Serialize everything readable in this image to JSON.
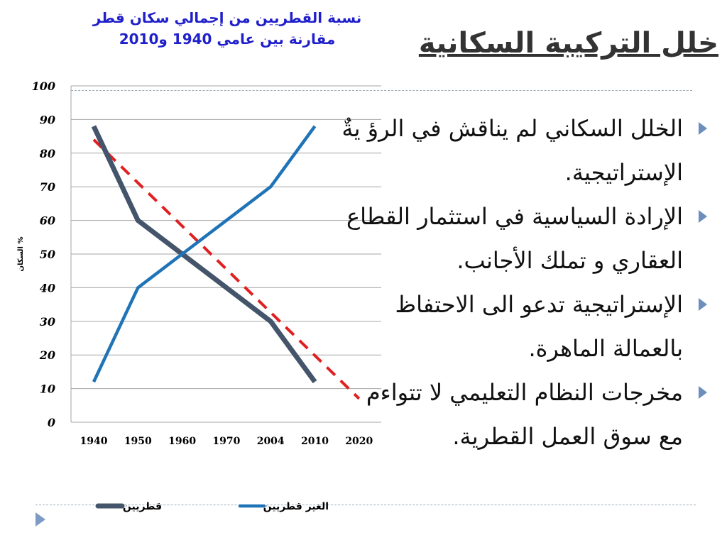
{
  "slide": {
    "title": "خلل التركيبة السكانية",
    "bullets": [
      "الخلل السكاني لم يناقش في الرؤ يةٌ الإستراتيجية.",
      "الإرادة السياسية في استثمار القطاع العقاري و تملك الأجانب.",
      "الإستراتيجية تدعو الى الاحتفاظ بالعمالة الماهرة.",
      "مخرجات النظام التعليمي لا تتواءم مع سوق العمل القطرية."
    ]
  },
  "chart_data": {
    "type": "line",
    "title_line1": "نسبة القطريين من إجمالي سكان قطر",
    "title_line2": "مقارنة بين عامي 1940 و2010",
    "ylabel": "السكان %",
    "xlabel": "",
    "categories": [
      "1940",
      "1950",
      "1960",
      "1970",
      "2004",
      "2010",
      "2020"
    ],
    "yticks": [
      "0",
      "10",
      "20",
      "30",
      "40",
      "50",
      "60",
      "70",
      "80",
      "90",
      "100"
    ],
    "ylim": [
      0,
      100
    ],
    "grid": true,
    "legend_position": "bottom",
    "series": [
      {
        "name": "قطريين",
        "color": "#44546a",
        "values": [
          88,
          60,
          50,
          40,
          30,
          12,
          null
        ]
      },
      {
        "name": "الغير قطريين",
        "color": "#1f73b7",
        "values": [
          12,
          40,
          50,
          60,
          70,
          88,
          null
        ]
      }
    ],
    "trendline": {
      "color": "#e02020",
      "style": "dashed",
      "start": [
        1940,
        84
      ],
      "end": [
        2020,
        7
      ]
    }
  }
}
